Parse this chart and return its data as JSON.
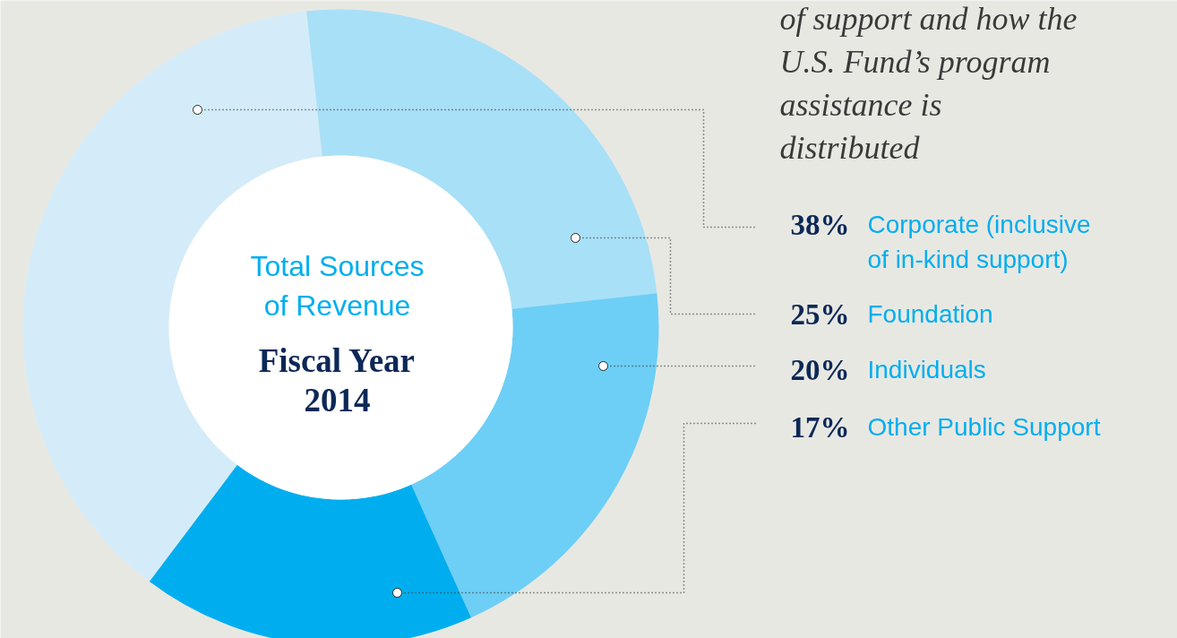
{
  "chart_data": {
    "type": "donut",
    "title": "Fiscal Year 2014",
    "subtitle": "Total Sources of Revenue",
    "annotations": [
      "of support and how the U.S. Fund’s program assistance is distributed"
    ],
    "categories": [
      "Corporate (inclusive of in-kind support)",
      "Foundation",
      "Individuals",
      "Other Public Support"
    ],
    "values": [
      38,
      25,
      20,
      17
    ],
    "value_labels": [
      "38%",
      "25%",
      "20%",
      "17%"
    ],
    "colors": [
      "#d4ecf9",
      "#a8e0f8",
      "#6dcff6",
      "#00aeef"
    ]
  }
}
